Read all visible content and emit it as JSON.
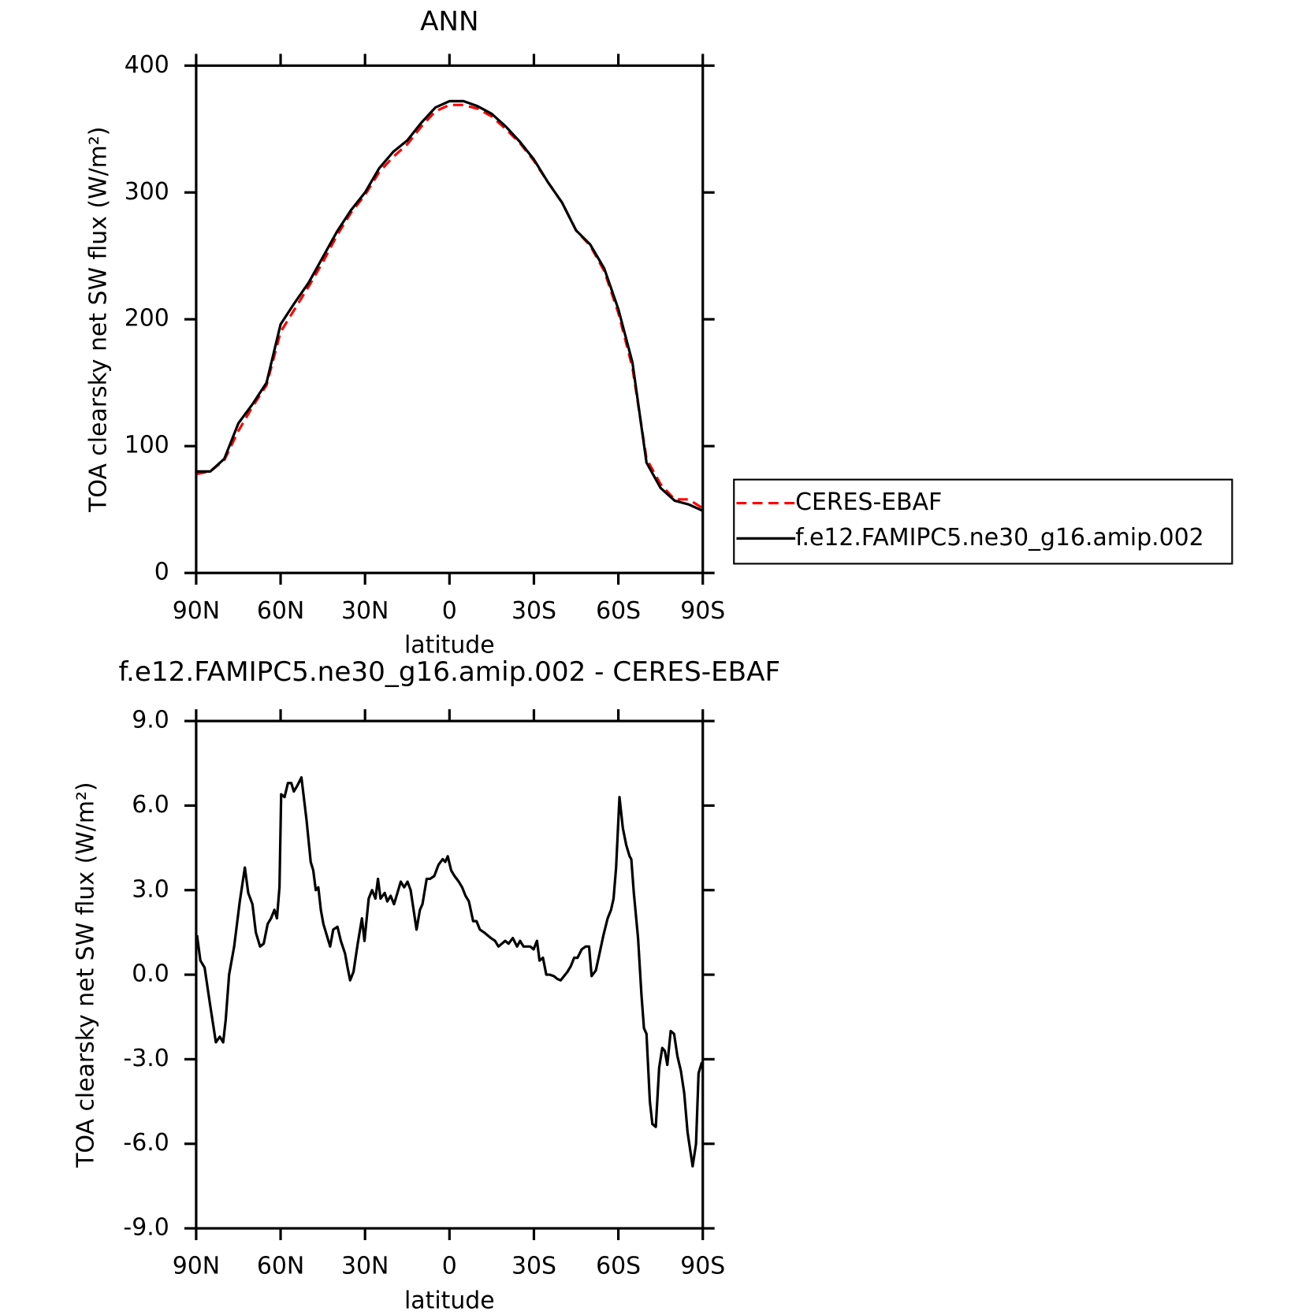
{
  "chart_data": [
    {
      "type": "line",
      "title": "ANN",
      "xlabel": "latitude",
      "ylabel": "TOA clearsky net SW flux (W/m²)",
      "x": [
        90,
        85,
        80,
        75,
        70,
        65,
        60,
        55,
        50,
        45,
        40,
        35,
        30,
        25,
        20,
        15,
        10,
        5,
        0,
        -5,
        -10,
        -15,
        -20,
        -25,
        -30,
        -35,
        -40,
        -45,
        -50,
        -55,
        -60,
        -65,
        -70,
        -75,
        -80,
        -85,
        -90
      ],
      "series": [
        {
          "name": "CERES-EBAF",
          "color": "#ff0000",
          "dash": true,
          "values": [
            78,
            80,
            89,
            112,
            131,
            148,
            190,
            208,
            226,
            245,
            266,
            284,
            298,
            316,
            328,
            338,
            352,
            364,
            369,
            369,
            366,
            360,
            350,
            339,
            325,
            308,
            292,
            270,
            258,
            238,
            205,
            162,
            90,
            70,
            58,
            58,
            51
          ]
        },
        {
          "name": "f.e12.FAMIPC5.ne30_g16.amip.002",
          "color": "#000000",
          "dash": false,
          "values": [
            80,
            80,
            90,
            118,
            133,
            150,
            196,
            213,
            229,
            249,
            269,
            286,
            300,
            319,
            332,
            341,
            355,
            367,
            372,
            372,
            368,
            362,
            352,
            340,
            326,
            308,
            292,
            270,
            259,
            240,
            208,
            166,
            87,
            67,
            57,
            54,
            49
          ]
        }
      ],
      "xlim": [
        90,
        -90
      ],
      "xticks": [
        {
          "value": 90,
          "label": "90N"
        },
        {
          "value": 60,
          "label": "60N"
        },
        {
          "value": 30,
          "label": "30N"
        },
        0,
        {
          "value": -30,
          "label": "30S"
        },
        {
          "value": -60,
          "label": "60S"
        },
        {
          "value": -90,
          "label": "90S"
        }
      ],
      "ylim": [
        0,
        400
      ],
      "yticks": [
        0,
        100,
        200,
        300,
        400
      ],
      "legend": "right"
    },
    {
      "type": "line",
      "title": "f.e12.FAMIPC5.ne30_g16.amip.002 - CERES-EBAF",
      "xlabel": "latitude",
      "ylabel": "TOA clearsky net SW flux (W/m²)",
      "x": [
        89.7,
        88.5,
        87,
        85,
        83,
        81.6,
        80.4,
        79.5,
        78.3,
        76.5,
        74.5,
        72.7,
        71.5,
        70,
        68.8,
        67.3,
        66,
        64.6,
        63.4,
        62.2,
        61.3,
        60.4,
        59.8,
        58.6,
        57.4,
        56.2,
        55.3,
        54.1,
        52.6,
        50.8,
        49.3,
        48.4,
        47.5,
        46.6,
        45.7,
        44.8,
        43.6,
        42.4,
        41.3,
        39.8,
        38.6,
        37.1,
        36.2,
        35.3,
        34.1,
        32.6,
        31.1,
        30.2,
        28.7,
        27.5,
        26.3,
        25.4,
        24.5,
        23,
        22.1,
        20.9,
        19.7,
        18.5,
        17.3,
        16.1,
        14.9,
        13.8,
        12.6,
        11.7,
        10.5,
        9.6,
        8.1,
        6.9,
        5.4,
        3.9,
        2.4,
        1.5,
        0.6,
        -0.6,
        -1.8,
        -3.3,
        -4.5,
        -5.7,
        -6.9,
        -8.4,
        -9.6,
        -10.8,
        -12.3,
        -13.5,
        -14.7,
        -16.2,
        -17.4,
        -18.6,
        -19.8,
        -21,
        -22.5,
        -24,
        -25.1,
        -26.3,
        -27.5,
        -28.7,
        -29.9,
        -31.1,
        -32,
        -33.2,
        -34.4,
        -35.6,
        -37.1,
        -38.3,
        -39.5,
        -40.7,
        -41.9,
        -43.1,
        -44.3,
        -45.5,
        -47,
        -48.4,
        -49.6,
        -50.5,
        -52,
        -53.2,
        -54.7,
        -56.2,
        -57.4,
        -58.3,
        -59.2,
        -60.4,
        -61.6,
        -62.8,
        -64,
        -64.6,
        -65.5,
        -67,
        -68.2,
        -69.1,
        -70,
        -71.2,
        -72.1,
        -73.3,
        -74.5,
        -75.6,
        -76.5,
        -77.4,
        -78.6,
        -79.8,
        -81,
        -82.2,
        -83.4,
        -84.6,
        -86.4,
        -87.6,
        -88.5,
        -89.7
      ],
      "series": [
        {
          "color": "#000000",
          "dash": false,
          "values": [
            1.4,
            0.5,
            0.25,
            -1.1,
            -2.4,
            -2.2,
            -2.4,
            -1.6,
            0,
            1,
            2.6,
            3.8,
            2.9,
            2.5,
            1.5,
            1,
            1.1,
            1.8,
            2,
            2.3,
            2,
            3.1,
            6.4,
            6.3,
            6.8,
            6.8,
            6.5,
            6.7,
            7,
            5.5,
            4,
            3.7,
            3,
            3.1,
            2.3,
            1.8,
            1.4,
            1,
            1.6,
            1.7,
            1.2,
            0.75,
            0.25,
            -0.2,
            0.1,
            1.1,
            2,
            1.2,
            2.7,
            3,
            2.7,
            3.4,
            2.7,
            2.9,
            2.6,
            2.8,
            2.5,
            2.9,
            3.3,
            3.1,
            3.3,
            3,
            2.2,
            1.6,
            2.3,
            2.5,
            3.4,
            3.4,
            3.5,
            3.9,
            4.1,
            4,
            4.2,
            3.7,
            3.5,
            3.3,
            3.1,
            2.8,
            2.6,
            1.9,
            1.9,
            1.6,
            1.5,
            1.4,
            1.3,
            1.2,
            1,
            1.1,
            1.2,
            1.1,
            1.3,
            1,
            1.2,
            1,
            1,
            1,
            0.9,
            1.2,
            0.5,
            0.6,
            0,
            0,
            -0.05,
            -0.15,
            -0.2,
            -0.05,
            0.1,
            0.3,
            0.6,
            0.6,
            0.9,
            1,
            1,
            -0.05,
            0.15,
            0.7,
            1.4,
            2,
            2.3,
            2.7,
            3.8,
            6.3,
            5.2,
            4.6,
            4.2,
            4.1,
            2.9,
            1.3,
            -0.7,
            -1.9,
            -2.1,
            -4.5,
            -5.3,
            -5.4,
            -3.3,
            -2.6,
            -2.7,
            -3.2,
            -2,
            -2.1,
            -2.9,
            -3.4,
            -4.2,
            -5.6,
            -6.8,
            -6,
            -3.5,
            -3.1
          ]
        }
      ],
      "xlim": [
        90,
        -90
      ],
      "xticks": [
        {
          "value": 90,
          "label": "90N"
        },
        {
          "value": 60,
          "label": "60N"
        },
        {
          "value": 30,
          "label": "30N"
        },
        0,
        {
          "value": -30,
          "label": "30S"
        },
        {
          "value": -60,
          "label": "60S"
        },
        {
          "value": -90,
          "label": "90S"
        }
      ],
      "ylim": [
        -9,
        9
      ],
      "yticks": [
        {
          "value": -9,
          "label": "-9.0"
        },
        {
          "value": -6,
          "label": "-6.0"
        },
        {
          "value": -3,
          "label": "-3.0"
        },
        {
          "value": 0,
          "label": "0.0"
        },
        {
          "value": 3,
          "label": "3.0"
        },
        {
          "value": 6,
          "label": "6.0"
        },
        {
          "value": 9,
          "label": "9.0"
        }
      ]
    }
  ]
}
